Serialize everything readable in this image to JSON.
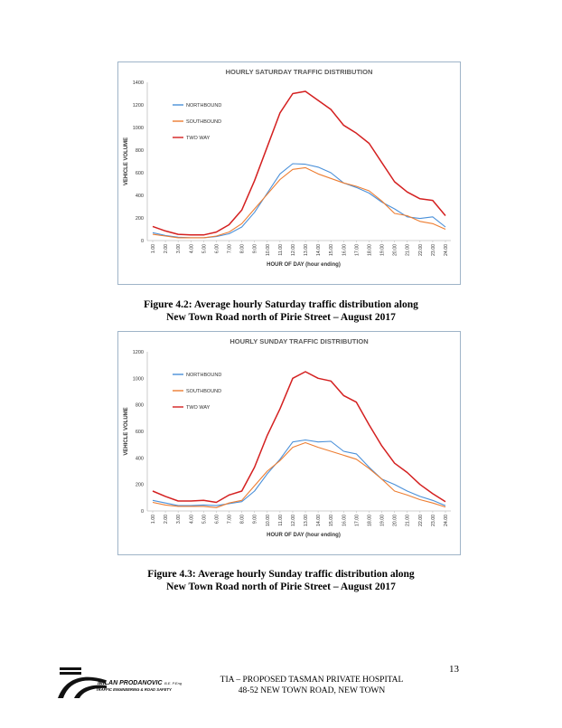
{
  "chart_data": [
    {
      "type": "line",
      "title": "HOURLY SATURDAY TRAFFIC DISTRIBUTION",
      "xlabel": "HOUR OF DAY (hour ending)",
      "ylabel": "VEHICLE VOLUME",
      "ylim": [
        0,
        1400
      ],
      "yticks": [
        0,
        200,
        400,
        600,
        800,
        1000,
        1200,
        1400
      ],
      "categories": [
        "1.00",
        "2.00",
        "3.00",
        "4.00",
        "5.00",
        "6.00",
        "7.00",
        "8.00",
        "9.00",
        "10.00",
        "11.00",
        "12.00",
        "13.00",
        "14.00",
        "15.00",
        "16.00",
        "17.00",
        "18.00",
        "19.00",
        "20.00",
        "21.00",
        "22.00",
        "23.00",
        "24.00"
      ],
      "legend_position": "top-left",
      "grid": false,
      "series": [
        {
          "name": "NORTHBOUND",
          "color": "#4a90d9",
          "values": [
            70,
            45,
            30,
            25,
            25,
            35,
            60,
            120,
            250,
            420,
            590,
            680,
            675,
            650,
            600,
            510,
            470,
            420,
            340,
            280,
            210,
            195,
            210,
            120
          ]
        },
        {
          "name": "SOUTHBOUND",
          "color": "#ed7d31",
          "values": [
            55,
            40,
            25,
            25,
            25,
            40,
            75,
            150,
            280,
            410,
            540,
            630,
            645,
            590,
            550,
            510,
            480,
            440,
            350,
            240,
            220,
            170,
            150,
            100
          ]
        },
        {
          "name": "TWO WAY",
          "color": "#d42020",
          "values": [
            125,
            85,
            55,
            50,
            50,
            75,
            140,
            270,
            530,
            830,
            1130,
            1300,
            1320,
            1240,
            1160,
            1020,
            950,
            860,
            690,
            520,
            430,
            370,
            355,
            220
          ]
        }
      ]
    },
    {
      "type": "line",
      "title": "HOURLY SUNDAY TRAFFIC DISTRIBUTION",
      "xlabel": "HOUR OF DAY (hour ending)",
      "ylabel": "VEHICLE VOLUME",
      "ylim": [
        0,
        1200
      ],
      "yticks": [
        0,
        200,
        400,
        600,
        800,
        1000,
        1200
      ],
      "categories": [
        "1.00",
        "2.00",
        "3.00",
        "4.00",
        "5.00",
        "6.00",
        "7.00",
        "8.00",
        "9.00",
        "10.00",
        "11.00",
        "12.00",
        "13.00",
        "14.00",
        "15.00",
        "16.00",
        "17.00",
        "18.00",
        "19.00",
        "20.00",
        "21.00",
        "22.00",
        "23.00",
        "24.00"
      ],
      "legend_position": "top-left",
      "grid": false,
      "series": [
        {
          "name": "NORTHBOUND",
          "color": "#4a90d9",
          "values": [
            80,
            60,
            40,
            40,
            45,
            40,
            55,
            70,
            150,
            280,
            390,
            520,
            535,
            520,
            525,
            450,
            430,
            330,
            240,
            200,
            150,
            110,
            80,
            40
          ]
        },
        {
          "name": "SOUTHBOUND",
          "color": "#ed7d31",
          "values": [
            65,
            45,
            35,
            35,
            35,
            25,
            60,
            80,
            190,
            300,
            380,
            480,
            515,
            480,
            450,
            420,
            390,
            320,
            240,
            150,
            120,
            85,
            60,
            30
          ]
        },
        {
          "name": "TWO WAY",
          "color": "#d42020",
          "values": [
            150,
            110,
            75,
            75,
            80,
            65,
            120,
            150,
            330,
            570,
            770,
            1000,
            1050,
            1000,
            980,
            870,
            820,
            650,
            490,
            360,
            290,
            200,
            130,
            70
          ]
        }
      ]
    }
  ],
  "captions": [
    {
      "line1": "Figure 4.2: Average hourly Saturday traffic distribution along",
      "line2": "New Town Road north of Pirie Street – August 2017"
    },
    {
      "line1": "Figure 4.3: Average hourly Sunday traffic distribution along",
      "line2": "New Town Road north of Pirie Street – August 2017"
    }
  ],
  "page_number": "13",
  "footer": {
    "line1": "TIA – PROPOSED TASMAN PRIVATE HOSPITAL",
    "line2": "48-52 NEW TOWN ROAD, NEW TOWN"
  },
  "logo": {
    "name": "MILAN PRODANOVIC",
    "suffix": "B.E. P.Eng",
    "tagline": "TRAFFIC ENGINEERING & ROAD SAFETY"
  }
}
